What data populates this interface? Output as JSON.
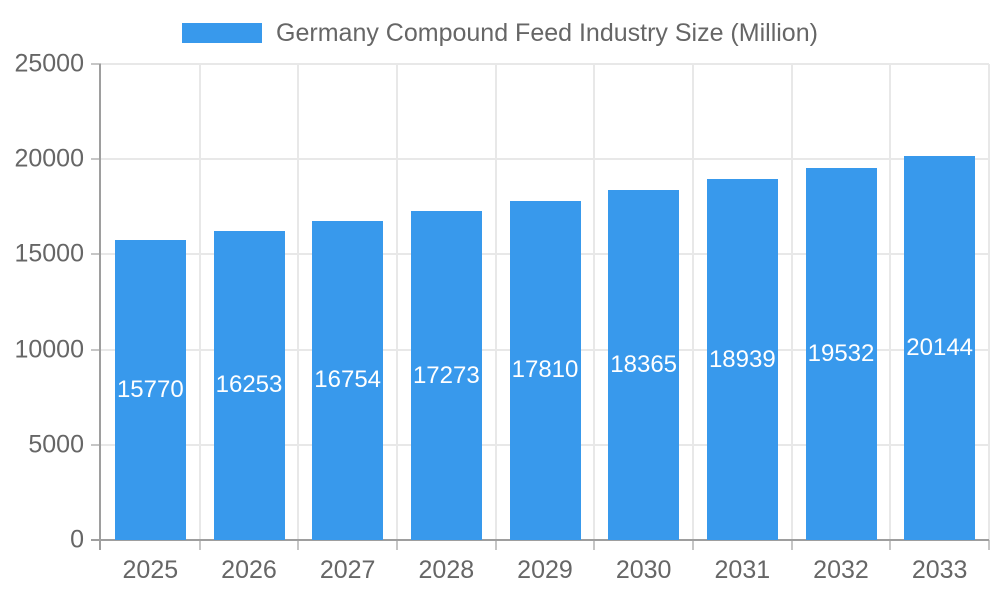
{
  "chart_data": {
    "type": "bar",
    "title": "Germany Compound Feed Industry Size (Million)",
    "categories": [
      "2025",
      "2026",
      "2027",
      "2028",
      "2029",
      "2030",
      "2031",
      "2032",
      "2033"
    ],
    "values": [
      15770,
      16253,
      16754,
      17273,
      17810,
      18365,
      18939,
      19532,
      20144
    ],
    "xlabel": "",
    "ylabel": "",
    "ylim": [
      0,
      25000
    ],
    "ytick_interval": 5000,
    "ytick_labels": [
      "0",
      "5000",
      "10000",
      "15000",
      "20000",
      "25000"
    ],
    "grid": true,
    "legend_position": "top",
    "colors": {
      "bar": "#3899EC",
      "value_label": "#ffffff",
      "axis_text": "#666666",
      "gridline": "#e8e8e8",
      "tick_mark": "#c6c6c6",
      "axis_line": "#9e9e9e",
      "background": "#ffffff"
    }
  }
}
